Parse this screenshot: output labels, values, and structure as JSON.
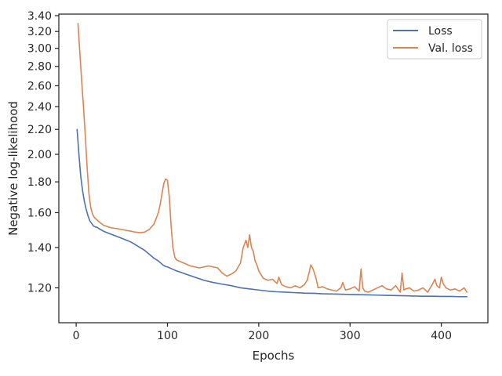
{
  "chart_data": {
    "type": "line",
    "title": "",
    "xlabel": "Epochs",
    "ylabel": "Negative log-likelihood",
    "xlim": [
      -19,
      451
    ],
    "ylim": [
      1.05,
      3.42
    ],
    "y_scale": "log",
    "x_ticks": [
      0,
      100,
      200,
      300,
      400
    ],
    "x_tick_labels": [
      "0",
      "100",
      "200",
      "300",
      "400"
    ],
    "y_ticks": [
      1.2,
      1.4,
      1.6,
      1.8,
      2.0,
      2.2,
      2.4,
      2.6,
      2.8,
      3.0,
      3.2,
      3.4
    ],
    "y_tick_labels": [
      "1.20",
      "1.40",
      "1.60",
      "1.80",
      "2.00",
      "2.20",
      "2.40",
      "2.60",
      "2.80",
      "3.00",
      "3.20",
      "3.40"
    ],
    "grid": false,
    "legend_position": "top-right",
    "series": [
      {
        "name": "Loss",
        "color": "#4c72b0",
        "x": [
          1,
          2,
          3,
          5,
          7,
          9,
          11,
          13,
          15,
          17,
          19,
          21,
          23,
          25,
          30,
          35,
          40,
          45,
          50,
          55,
          60,
          65,
          70,
          75,
          80,
          85,
          90,
          95,
          98,
          100,
          105,
          110,
          115,
          120,
          130,
          140,
          150,
          160,
          170,
          180,
          190,
          200,
          210,
          220,
          230,
          240,
          250,
          260,
          270,
          280,
          290,
          300,
          310,
          320,
          330,
          340,
          350,
          360,
          370,
          380,
          390,
          400,
          410,
          420,
          428
        ],
        "y": [
          2.2,
          2.1,
          2.0,
          1.84,
          1.74,
          1.67,
          1.62,
          1.58,
          1.55,
          1.535,
          1.52,
          1.515,
          1.512,
          1.505,
          1.49,
          1.48,
          1.47,
          1.46,
          1.45,
          1.44,
          1.43,
          1.415,
          1.4,
          1.385,
          1.365,
          1.345,
          1.33,
          1.31,
          1.302,
          1.3,
          1.29,
          1.28,
          1.273,
          1.265,
          1.25,
          1.235,
          1.225,
          1.217,
          1.21,
          1.2,
          1.195,
          1.19,
          1.185,
          1.182,
          1.18,
          1.178,
          1.176,
          1.175,
          1.173,
          1.172,
          1.171,
          1.17,
          1.169,
          1.168,
          1.167,
          1.166,
          1.165,
          1.164,
          1.163,
          1.162,
          1.162,
          1.161,
          1.161,
          1.16,
          1.16
        ]
      },
      {
        "name": "Val. loss",
        "color": "#dd8452",
        "x": [
          2,
          4,
          6,
          8,
          10,
          12,
          14,
          16,
          18,
          20,
          25,
          30,
          35,
          40,
          45,
          50,
          55,
          60,
          65,
          70,
          75,
          80,
          85,
          88,
          90,
          92,
          94,
          96,
          98,
          100,
          102,
          104,
          106,
          108,
          110,
          115,
          120,
          125,
          130,
          135,
          140,
          145,
          150,
          155,
          160,
          165,
          170,
          175,
          180,
          183,
          186,
          188,
          190,
          192,
          194,
          196,
          198,
          200,
          205,
          210,
          215,
          220,
          222,
          225,
          230,
          235,
          240,
          245,
          250,
          253,
          255,
          257,
          259,
          261,
          263,
          265,
          270,
          275,
          280,
          285,
          290,
          292,
          295,
          300,
          305,
          310,
          312,
          314,
          316,
          320,
          325,
          330,
          335,
          340,
          345,
          350,
          355,
          357,
          359,
          361,
          365,
          370,
          375,
          380,
          385,
          390,
          393,
          395,
          398,
          400,
          402,
          405,
          410,
          415,
          420,
          425,
          428
        ],
        "y": [
          3.3,
          2.95,
          2.65,
          2.4,
          2.15,
          1.9,
          1.72,
          1.63,
          1.59,
          1.57,
          1.545,
          1.525,
          1.515,
          1.508,
          1.505,
          1.5,
          1.495,
          1.49,
          1.485,
          1.482,
          1.485,
          1.5,
          1.53,
          1.57,
          1.6,
          1.65,
          1.72,
          1.79,
          1.82,
          1.81,
          1.7,
          1.52,
          1.4,
          1.35,
          1.335,
          1.325,
          1.315,
          1.305,
          1.3,
          1.295,
          1.3,
          1.305,
          1.3,
          1.295,
          1.27,
          1.255,
          1.265,
          1.28,
          1.32,
          1.4,
          1.44,
          1.4,
          1.47,
          1.4,
          1.38,
          1.33,
          1.31,
          1.28,
          1.245,
          1.235,
          1.24,
          1.22,
          1.25,
          1.215,
          1.205,
          1.2,
          1.21,
          1.2,
          1.215,
          1.235,
          1.27,
          1.31,
          1.295,
          1.27,
          1.24,
          1.2,
          1.205,
          1.195,
          1.19,
          1.185,
          1.2,
          1.225,
          1.19,
          1.195,
          1.205,
          1.185,
          1.29,
          1.2,
          1.185,
          1.18,
          1.19,
          1.2,
          1.21,
          1.195,
          1.19,
          1.21,
          1.18,
          1.27,
          1.19,
          1.195,
          1.2,
          1.185,
          1.19,
          1.2,
          1.18,
          1.215,
          1.24,
          1.21,
          1.2,
          1.25,
          1.22,
          1.2,
          1.19,
          1.195,
          1.185,
          1.2,
          1.18
        ]
      }
    ]
  }
}
